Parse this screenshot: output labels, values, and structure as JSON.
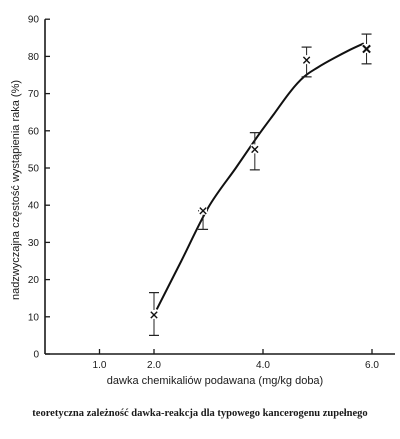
{
  "chart_data": {
    "type": "scatter",
    "title": "",
    "caption": "teoretyczna zależność dawka-reakcja dla typowego kancerogenu zupełnego",
    "xlabel": "dawka chemikaliów podawana (mg/kg doba)",
    "ylabel": "nadzwyczajna częstość wystąpienia raka (%)",
    "xlim": [
      0,
      6.0
    ],
    "ylim": [
      0,
      90
    ],
    "x_ticks": [
      {
        "value": 1.0,
        "label": "1.0"
      },
      {
        "value": 2.0,
        "label": "2.0"
      },
      {
        "value": 4.0,
        "label": "4.0"
      },
      {
        "value": 6.0,
        "label": "6.0"
      }
    ],
    "y_ticks": [
      {
        "value": 0,
        "label": "0"
      },
      {
        "value": 10,
        "label": "10"
      },
      {
        "value": 20,
        "label": "20"
      },
      {
        "value": 30,
        "label": "30"
      },
      {
        "value": 40,
        "label": "40"
      },
      {
        "value": 50,
        "label": "50"
      },
      {
        "value": 60,
        "label": "60"
      },
      {
        "value": 70,
        "label": "70"
      },
      {
        "value": 80,
        "label": "80"
      },
      {
        "value": 90,
        "label": "90"
      }
    ],
    "grid": false,
    "points": [
      {
        "x": 2.0,
        "y": 10.5,
        "err_low": 5,
        "err_high": 16.5,
        "marker": "x"
      },
      {
        "x": 2.9,
        "y": 38.5,
        "err_low": 33.5,
        "err_high": 38.5,
        "marker": "x"
      },
      {
        "x": 3.85,
        "y": 55,
        "err_low": 49.5,
        "err_high": 59.5,
        "marker": "x"
      },
      {
        "x": 4.8,
        "y": 79,
        "err_low": 74.5,
        "err_high": 82.5,
        "marker": "x"
      },
      {
        "x": 5.9,
        "y": 82,
        "err_low": 78,
        "err_high": 86,
        "marker": "x-bold"
      }
    ],
    "fit_curve": {
      "x": [
        2.05,
        2.5,
        3.0,
        3.5,
        3.9,
        4.2,
        4.5,
        4.75,
        5.0,
        5.3,
        5.6,
        5.85
      ],
      "y": [
        12,
        25,
        39.5,
        50,
        58.5,
        64.5,
        70.5,
        74.5,
        77,
        79.5,
        81.8,
        83.5
      ]
    }
  }
}
